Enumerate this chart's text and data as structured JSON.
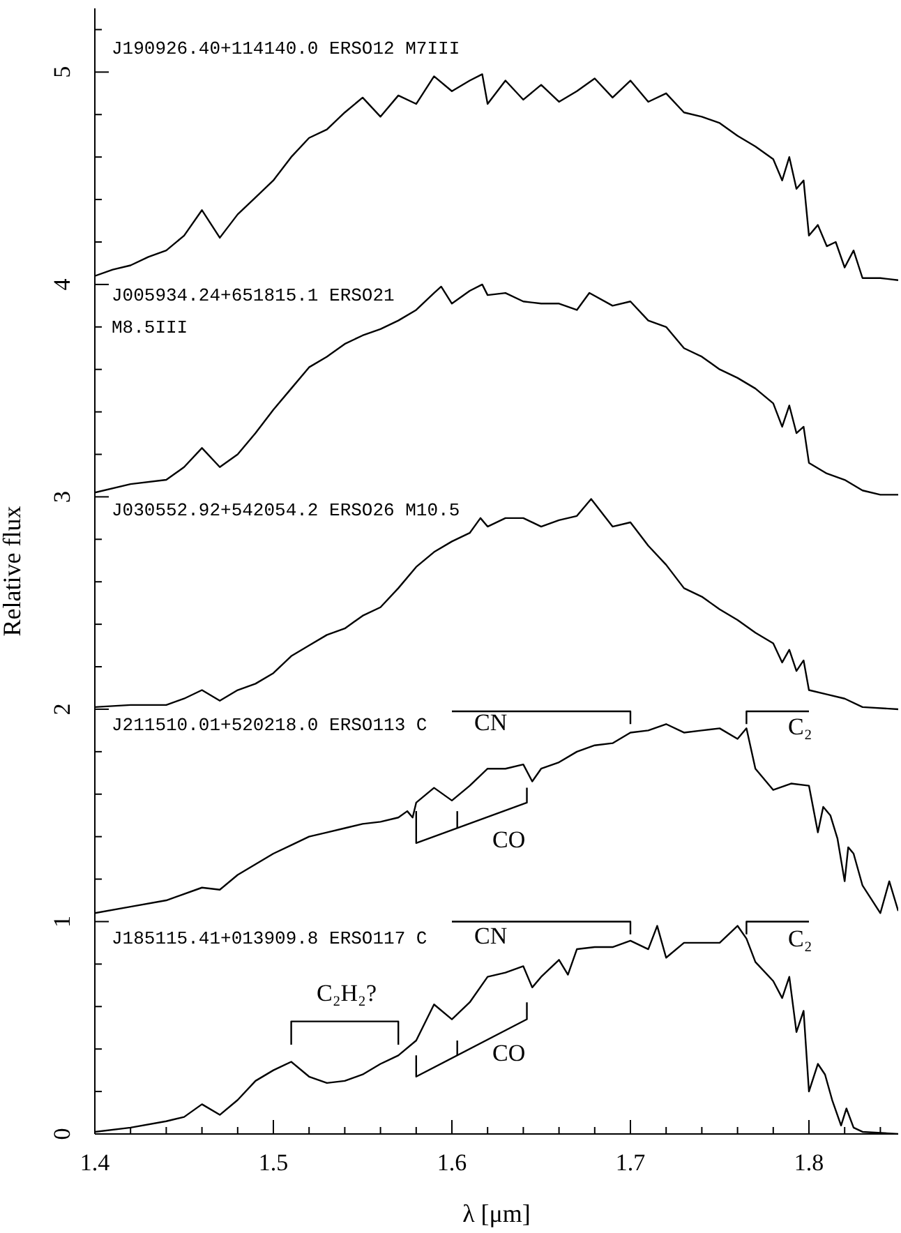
{
  "chart_data": {
    "type": "line",
    "xlabel": "λ [μm]",
    "ylabel": "Relative flux",
    "xlim": [
      1.4,
      1.85
    ],
    "ylim": [
      0,
      5.3
    ],
    "xticks": [
      1.4,
      {
        "value": 1.42,
        "label": null
      },
      {
        "value": 1.44,
        "label": null
      },
      {
        "value": 1.46,
        "label": null
      },
      {
        "value": 1.48,
        "label": null
      },
      1.5,
      {
        "value": 1.52,
        "label": null
      },
      {
        "value": 1.54,
        "label": null
      },
      {
        "value": 1.56,
        "label": null
      },
      {
        "value": 1.58,
        "label": null
      },
      1.6,
      {
        "value": 1.62,
        "label": null
      },
      {
        "value": 1.64,
        "label": null
      },
      {
        "value": 1.66,
        "label": null
      },
      {
        "value": 1.68,
        "label": null
      },
      1.7,
      {
        "value": 1.72,
        "label": null
      },
      {
        "value": 1.74,
        "label": null
      },
      {
        "value": 1.76,
        "label": null
      },
      {
        "value": 1.78,
        "label": null
      },
      1.8,
      {
        "value": 1.82,
        "label": null
      },
      {
        "value": 1.84,
        "label": null
      }
    ],
    "yticks": [
      0,
      {
        "value": 0.2,
        "label": null
      },
      {
        "value": 0.4,
        "label": null
      },
      {
        "value": 0.6,
        "label": null
      },
      {
        "value": 0.8,
        "label": null
      },
      1,
      {
        "value": 1.2,
        "label": null
      },
      {
        "value": 1.4,
        "label": null
      },
      {
        "value": 1.6,
        "label": null
      },
      {
        "value": 1.8,
        "label": null
      },
      2,
      {
        "value": 2.2,
        "label": null
      },
      {
        "value": 2.4,
        "label": null
      },
      {
        "value": 2.6,
        "label": null
      },
      {
        "value": 2.8,
        "label": null
      },
      3,
      {
        "value": 3.2,
        "label": null
      },
      {
        "value": 3.4,
        "label": null
      },
      {
        "value": 3.6,
        "label": null
      },
      {
        "value": 3.8,
        "label": null
      },
      4,
      {
        "value": 4.2,
        "label": null
      },
      {
        "value": 4.4,
        "label": null
      },
      {
        "value": 4.6,
        "label": null
      },
      {
        "value": 4.8,
        "label": null
      },
      5,
      {
        "value": 5.2,
        "label": null
      }
    ],
    "series": [
      {
        "color": "#000000",
        "x": [
          1.4,
          1.41,
          1.42,
          1.43,
          1.44,
          1.45,
          1.46,
          1.47,
          1.48,
          1.49,
          1.5,
          1.51,
          1.52,
          1.53,
          1.54,
          1.55,
          1.56,
          1.57,
          1.58,
          1.59,
          1.6,
          1.61,
          1.617,
          1.62,
          1.63,
          1.64,
          1.65,
          1.66,
          1.67,
          1.68,
          1.69,
          1.7,
          1.71,
          1.72,
          1.73,
          1.74,
          1.75,
          1.76,
          1.77,
          1.78,
          1.785,
          1.789,
          1.793,
          1.797,
          1.8,
          1.805,
          1.81,
          1.815,
          1.82,
          1.825,
          1.83,
          1.84,
          1.85
        ],
        "values": [
          4.04,
          4.07,
          4.09,
          4.13,
          4.16,
          4.23,
          4.35,
          4.22,
          4.33,
          4.41,
          4.49,
          4.6,
          4.69,
          4.73,
          4.81,
          4.88,
          4.79,
          4.89,
          4.85,
          4.98,
          4.91,
          4.96,
          4.99,
          4.85,
          4.96,
          4.87,
          4.94,
          4.86,
          4.91,
          4.97,
          4.88,
          4.96,
          4.86,
          4.9,
          4.81,
          4.79,
          4.76,
          4.7,
          4.65,
          4.59,
          4.49,
          4.6,
          4.45,
          4.49,
          4.23,
          4.28,
          4.18,
          4.2,
          4.08,
          4.16,
          4.03,
          4.03,
          4.02
        ]
      },
      {
        "color": "#000000",
        "x": [
          1.4,
          1.42,
          1.44,
          1.45,
          1.46,
          1.47,
          1.48,
          1.49,
          1.5,
          1.51,
          1.52,
          1.53,
          1.54,
          1.55,
          1.56,
          1.57,
          1.58,
          1.59,
          1.594,
          1.6,
          1.61,
          1.617,
          1.62,
          1.63,
          1.64,
          1.65,
          1.66,
          1.67,
          1.677,
          1.69,
          1.7,
          1.71,
          1.72,
          1.73,
          1.74,
          1.75,
          1.76,
          1.77,
          1.78,
          1.785,
          1.789,
          1.793,
          1.797,
          1.8,
          1.81,
          1.82,
          1.83,
          1.84,
          1.85
        ],
        "values": [
          3.02,
          3.06,
          3.08,
          3.14,
          3.23,
          3.14,
          3.2,
          3.3,
          3.41,
          3.51,
          3.61,
          3.66,
          3.72,
          3.76,
          3.79,
          3.83,
          3.88,
          3.96,
          3.99,
          3.91,
          3.97,
          4.0,
          3.95,
          3.96,
          3.92,
          3.91,
          3.91,
          3.88,
          3.96,
          3.9,
          3.92,
          3.83,
          3.8,
          3.7,
          3.66,
          3.6,
          3.56,
          3.51,
          3.44,
          3.33,
          3.43,
          3.3,
          3.33,
          3.16,
          3.11,
          3.08,
          3.03,
          3.01,
          3.01
        ]
      },
      {
        "color": "#000000",
        "x": [
          1.4,
          1.42,
          1.44,
          1.45,
          1.46,
          1.47,
          1.48,
          1.49,
          1.5,
          1.51,
          1.52,
          1.53,
          1.54,
          1.55,
          1.56,
          1.57,
          1.58,
          1.59,
          1.6,
          1.61,
          1.616,
          1.62,
          1.63,
          1.64,
          1.65,
          1.66,
          1.67,
          1.678,
          1.69,
          1.7,
          1.71,
          1.72,
          1.73,
          1.74,
          1.75,
          1.76,
          1.77,
          1.78,
          1.785,
          1.789,
          1.793,
          1.797,
          1.8,
          1.81,
          1.82,
          1.83,
          1.85
        ],
        "values": [
          2.01,
          2.02,
          2.02,
          2.05,
          2.09,
          2.04,
          2.09,
          2.12,
          2.17,
          2.25,
          2.3,
          2.35,
          2.38,
          2.44,
          2.48,
          2.57,
          2.67,
          2.74,
          2.79,
          2.83,
          2.9,
          2.86,
          2.9,
          2.9,
          2.86,
          2.89,
          2.91,
          2.99,
          2.86,
          2.88,
          2.77,
          2.68,
          2.57,
          2.53,
          2.47,
          2.42,
          2.36,
          2.31,
          2.22,
          2.28,
          2.18,
          2.23,
          2.09,
          2.07,
          2.05,
          2.01,
          2.0
        ]
      },
      {
        "color": "#000000",
        "x": [
          1.4,
          1.42,
          1.44,
          1.46,
          1.47,
          1.48,
          1.49,
          1.5,
          1.51,
          1.52,
          1.53,
          1.54,
          1.55,
          1.56,
          1.57,
          1.575,
          1.578,
          1.58,
          1.59,
          1.6,
          1.61,
          1.62,
          1.63,
          1.64,
          1.645,
          1.65,
          1.66,
          1.67,
          1.68,
          1.69,
          1.7,
          1.71,
          1.72,
          1.73,
          1.74,
          1.75,
          1.76,
          1.765,
          1.77,
          1.78,
          1.79,
          1.8,
          1.805,
          1.808,
          1.812,
          1.816,
          1.82,
          1.822,
          1.825,
          1.83,
          1.84,
          1.845,
          1.85
        ],
        "values": [
          1.04,
          1.07,
          1.1,
          1.16,
          1.15,
          1.22,
          1.27,
          1.32,
          1.36,
          1.4,
          1.42,
          1.44,
          1.46,
          1.47,
          1.49,
          1.52,
          1.49,
          1.56,
          1.63,
          1.57,
          1.64,
          1.72,
          1.72,
          1.74,
          1.66,
          1.72,
          1.75,
          1.8,
          1.83,
          1.84,
          1.89,
          1.9,
          1.93,
          1.89,
          1.9,
          1.91,
          1.86,
          1.91,
          1.72,
          1.62,
          1.65,
          1.64,
          1.42,
          1.54,
          1.5,
          1.39,
          1.19,
          1.35,
          1.32,
          1.17,
          1.04,
          1.19,
          1.05
        ]
      },
      {
        "color": "#000000",
        "x": [
          1.4,
          1.42,
          1.44,
          1.45,
          1.46,
          1.47,
          1.48,
          1.49,
          1.5,
          1.51,
          1.52,
          1.53,
          1.54,
          1.55,
          1.56,
          1.57,
          1.58,
          1.59,
          1.6,
          1.61,
          1.62,
          1.63,
          1.64,
          1.645,
          1.65,
          1.66,
          1.665,
          1.67,
          1.68,
          1.69,
          1.7,
          1.71,
          1.715,
          1.72,
          1.73,
          1.74,
          1.75,
          1.76,
          1.765,
          1.77,
          1.78,
          1.785,
          1.789,
          1.793,
          1.797,
          1.8,
          1.805,
          1.809,
          1.813,
          1.818,
          1.821,
          1.825,
          1.83,
          1.85
        ],
        "values": [
          0.01,
          0.03,
          0.06,
          0.08,
          0.14,
          0.09,
          0.16,
          0.25,
          0.3,
          0.34,
          0.27,
          0.24,
          0.25,
          0.28,
          0.33,
          0.37,
          0.44,
          0.61,
          0.54,
          0.62,
          0.74,
          0.76,
          0.79,
          0.69,
          0.74,
          0.82,
          0.75,
          0.87,
          0.88,
          0.88,
          0.91,
          0.87,
          0.98,
          0.83,
          0.9,
          0.9,
          0.9,
          0.98,
          0.92,
          0.81,
          0.72,
          0.64,
          0.74,
          0.48,
          0.58,
          0.2,
          0.33,
          0.28,
          0.16,
          0.04,
          0.12,
          0.03,
          0.01,
          0.0
        ]
      },
      {
        "color": "#000000",
        "x": [
          1.6,
          1.7,
          1.7
        ],
        "values": [
          1.99,
          1.99,
          1.93
        ]
      },
      {
        "color": "#000000",
        "x": [
          1.765,
          1.765,
          1.8
        ],
        "values": [
          1.93,
          1.99,
          1.99
        ]
      },
      {
        "color": "#000000",
        "x": [
          1.58,
          1.58,
          1.642,
          1.642
        ],
        "values": [
          1.52,
          1.37,
          1.56,
          1.63
        ]
      },
      {
        "color": "#000000",
        "x": [
          1.603,
          1.603
        ],
        "values": [
          1.44,
          1.52
        ]
      },
      {
        "color": "#000000",
        "x": [
          1.6,
          1.7,
          1.7
        ],
        "values": [
          1.0,
          1.0,
          0.94
        ]
      },
      {
        "color": "#000000",
        "x": [
          1.765,
          1.765,
          1.8
        ],
        "values": [
          0.94,
          1.0,
          1.0
        ]
      },
      {
        "color": "#000000",
        "x": [
          1.51,
          1.51,
          1.57,
          1.57
        ],
        "values": [
          0.42,
          0.53,
          0.53,
          0.42
        ]
      },
      {
        "color": "#000000",
        "x": [
          1.58,
          1.58,
          1.642,
          1.642
        ],
        "values": [
          0.37,
          0.27,
          0.54,
          0.62
        ]
      },
      {
        "color": "#000000",
        "x": [
          1.603,
          1.603
        ],
        "values": [
          0.37,
          0.44
        ]
      }
    ],
    "annotations": [
      "J190926.40+114140.0 ERSO12 M7III",
      "J005934.24+651815.1 ERSO21",
      "M8.5III",
      "J030552.92+542054.2 ERSO26 M10.5",
      "J211510.01+520218.0 ERSO113 C",
      "CN",
      "C₂",
      "CO",
      "J185115.41+013909.8 ERSO117 C",
      "CN",
      "C₂",
      "C₂H₂?",
      "CO"
    ]
  }
}
